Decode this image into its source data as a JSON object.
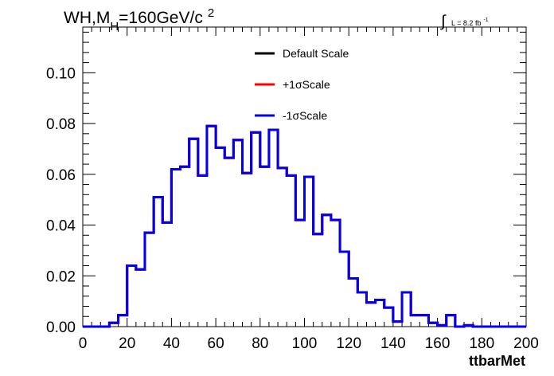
{
  "chart_data": {
    "type": "line",
    "title": "WH,M",
    "title_subscript": "H",
    "title_rest": "=160GeV/c",
    "title_superscript": "2",
    "lumi_integral": "∫",
    "lumi_text": "L = 8.2 fb",
    "lumi_superscript": "-1",
    "xlabel": "ttbarMet",
    "ylabel": "",
    "xlim": [
      0,
      200
    ],
    "ylim": [
      0,
      0.118
    ],
    "x_ticks": [
      "0",
      "20",
      "40",
      "60",
      "80",
      "100",
      "120",
      "140",
      "160",
      "180",
      "200"
    ],
    "y_ticks": [
      "0.00",
      "0.02",
      "0.04",
      "0.06",
      "0.08",
      "0.10"
    ],
    "legend_position": "top-center",
    "bin_width": 4,
    "bin_edges_start": 0,
    "series": [
      {
        "name": "Default Scale",
        "color": "#000000",
        "values": [
          0,
          0,
          0,
          0.0015,
          0.0045,
          0.024,
          0.0225,
          0.037,
          0.051,
          0.041,
          0.062,
          0.063,
          0.074,
          0.0595,
          0.079,
          0.0705,
          0.0665,
          0.0735,
          0.0605,
          0.0765,
          0.063,
          0.0775,
          0.0625,
          0.0595,
          0.042,
          0.059,
          0.0365,
          0.044,
          0.042,
          0.0295,
          0.019,
          0.0135,
          0.0095,
          0.0105,
          0.0075,
          0.002,
          0.0135,
          0.0045,
          0.0045,
          0.0015,
          0.0005,
          0.0045,
          0,
          0.0005,
          0,
          0,
          0,
          0,
          0,
          0
        ]
      },
      {
        "name": "+1σScale",
        "color": "#ff0000",
        "values": [
          0,
          0,
          0,
          0.0015,
          0.0045,
          0.024,
          0.0225,
          0.037,
          0.051,
          0.041,
          0.062,
          0.063,
          0.074,
          0.0595,
          0.079,
          0.0705,
          0.0665,
          0.0735,
          0.0605,
          0.0765,
          0.063,
          0.0775,
          0.0625,
          0.0595,
          0.042,
          0.059,
          0.0365,
          0.044,
          0.042,
          0.0295,
          0.019,
          0.0135,
          0.0095,
          0.0105,
          0.0075,
          0.002,
          0.0135,
          0.0045,
          0.0045,
          0.0015,
          0.0005,
          0.0045,
          0,
          0.0005,
          0,
          0,
          0,
          0,
          0,
          0
        ]
      },
      {
        "name": "-1σScale",
        "color": "#0000ee",
        "values": [
          0,
          0,
          0,
          0.0015,
          0.0045,
          0.024,
          0.0225,
          0.037,
          0.051,
          0.041,
          0.062,
          0.063,
          0.074,
          0.0595,
          0.079,
          0.0705,
          0.0665,
          0.0735,
          0.0605,
          0.0765,
          0.063,
          0.0775,
          0.0625,
          0.0595,
          0.042,
          0.059,
          0.0365,
          0.044,
          0.042,
          0.0295,
          0.019,
          0.0135,
          0.0095,
          0.0105,
          0.0075,
          0.002,
          0.0135,
          0.0045,
          0.0045,
          0.0015,
          0.0005,
          0.0045,
          0,
          0.0005,
          0,
          0,
          0,
          0,
          0,
          0
        ]
      }
    ]
  }
}
